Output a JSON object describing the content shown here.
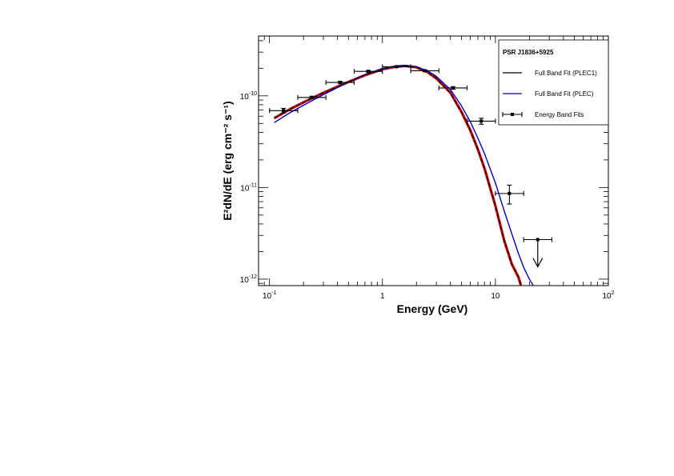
{
  "chart_data": {
    "type": "line",
    "title": "",
    "xlabel": "Energy (GeV)",
    "ylabel": "E²dN/dE (erg cm⁻² s⁻¹)",
    "x_scale": "log",
    "y_scale": "log",
    "xlim": [
      0.08,
      100
    ],
    "ylim": [
      8.5e-13,
      4.5e-10
    ],
    "x_ticks": [
      {
        "value": 0.1,
        "base": "10",
        "exp": "-1"
      },
      {
        "value": 1,
        "base": "1",
        "exp": ""
      },
      {
        "value": 10,
        "base": "10",
        "exp": ""
      },
      {
        "value": 100,
        "base": "10",
        "exp": "2"
      }
    ],
    "y_ticks": [
      {
        "value": 1e-12,
        "base": "10",
        "exp": "-12"
      },
      {
        "value": 1e-11,
        "base": "10",
        "exp": "-11"
      },
      {
        "value": 1e-10,
        "base": "10",
        "exp": "-10"
      }
    ],
    "grid": false,
    "legend_position": "top-right",
    "legend": {
      "title": "PSR J1836+5925",
      "entries": [
        {
          "label": "Full Band Fit (PLEC1)",
          "color": "#000000",
          "style": "line"
        },
        {
          "label": "Full Band Fit (PLEC)",
          "color": "#0000cc",
          "style": "line"
        },
        {
          "label": "Energy Band Fits",
          "color": "#000000",
          "style": "point-errorbar"
        }
      ]
    },
    "series": [
      {
        "name": "Full Band Fit (PLEC1)",
        "color": "#000000",
        "band_color": "#cc0000",
        "x": [
          0.11,
          0.15,
          0.2,
          0.3,
          0.4,
          0.5,
          0.7,
          1.0,
          1.3,
          1.6,
          2.0,
          2.5,
          3.0,
          4.0,
          5.0,
          6.0,
          7.0,
          8.0,
          10.0,
          12.0,
          14.0,
          16.0,
          16.8
        ],
        "y": [
          5.7e-11,
          7.1e-11,
          8.5e-11,
          1.08e-10,
          1.26e-10,
          1.42e-10,
          1.68e-10,
          1.95e-10,
          2.08e-10,
          2.12e-10,
          2.05e-10,
          1.82e-10,
          1.55e-10,
          1.08e-10,
          6.7e-11,
          4.2e-11,
          2.6e-11,
          1.62e-11,
          6.3e-12,
          2.6e-12,
          1.45e-12,
          1.05e-12,
          8.6e-13
        ]
      },
      {
        "name": "Full Band Fit (PLEC)",
        "color": "#0000cc",
        "x": [
          0.11,
          0.15,
          0.2,
          0.3,
          0.4,
          0.5,
          0.7,
          1.0,
          1.3,
          1.6,
          2.0,
          2.5,
          3.0,
          4.0,
          5.0,
          6.0,
          7.0,
          8.0,
          10.0,
          12.0,
          14.0,
          16.0,
          18.0,
          20.0,
          21.5
        ],
        "y": [
          5.1e-11,
          6.5e-11,
          7.9e-11,
          1.03e-10,
          1.23e-10,
          1.41e-10,
          1.7e-10,
          1.99e-10,
          2.12e-10,
          2.15e-10,
          2.08e-10,
          1.88e-10,
          1.63e-10,
          1.17e-10,
          7.8e-11,
          5.2e-11,
          3.45e-11,
          2.35e-11,
          1.12e-11,
          5.5e-12,
          3.1e-12,
          1.9e-12,
          1.3e-12,
          1e-12,
          8.6e-13
        ]
      },
      {
        "name": "Energy Band Fits",
        "color": "#000000",
        "points": [
          {
            "x": 0.133,
            "xlo": 0.1,
            "xhi": 0.178,
            "y": 6.9e-11,
            "ylo": 6.5e-11,
            "yhi": 7.3e-11,
            "upper_limit": false
          },
          {
            "x": 0.237,
            "xlo": 0.178,
            "xhi": 0.316,
            "y": 9.6e-11,
            "ylo": 9.3e-11,
            "yhi": 9.9e-11,
            "upper_limit": false
          },
          {
            "x": 0.422,
            "xlo": 0.316,
            "xhi": 0.562,
            "y": 1.4e-10,
            "ylo": 1.36e-10,
            "yhi": 1.44e-10,
            "upper_limit": false
          },
          {
            "x": 0.75,
            "xlo": 0.562,
            "xhi": 1.0,
            "y": 1.85e-10,
            "ylo": 1.81e-10,
            "yhi": 1.89e-10,
            "upper_limit": false
          },
          {
            "x": 1.33,
            "xlo": 1.0,
            "xhi": 1.78,
            "y": 2.08e-10,
            "ylo": 2.04e-10,
            "yhi": 2.12e-10,
            "upper_limit": false
          },
          {
            "x": 2.37,
            "xlo": 1.78,
            "xhi": 3.16,
            "y": 1.88e-10,
            "ylo": 1.84e-10,
            "yhi": 1.92e-10,
            "upper_limit": false
          },
          {
            "x": 4.22,
            "xlo": 3.16,
            "xhi": 5.62,
            "y": 1.22e-10,
            "ylo": 1.18e-10,
            "yhi": 1.26e-10,
            "upper_limit": false
          },
          {
            "x": 7.5,
            "xlo": 5.62,
            "xhi": 10.0,
            "y": 5.3e-11,
            "ylo": 4.9e-11,
            "yhi": 5.7e-11,
            "upper_limit": false
          },
          {
            "x": 13.3,
            "xlo": 10.0,
            "xhi": 17.8,
            "y": 8.6e-12,
            "ylo": 6.6e-12,
            "yhi": 1.06e-11,
            "upper_limit": false
          },
          {
            "x": 23.7,
            "xlo": 17.8,
            "xhi": 31.6,
            "y": 2.7e-12,
            "ylo": 1.5e-12,
            "yhi": 2.7e-12,
            "upper_limit": true
          }
        ]
      }
    ]
  }
}
